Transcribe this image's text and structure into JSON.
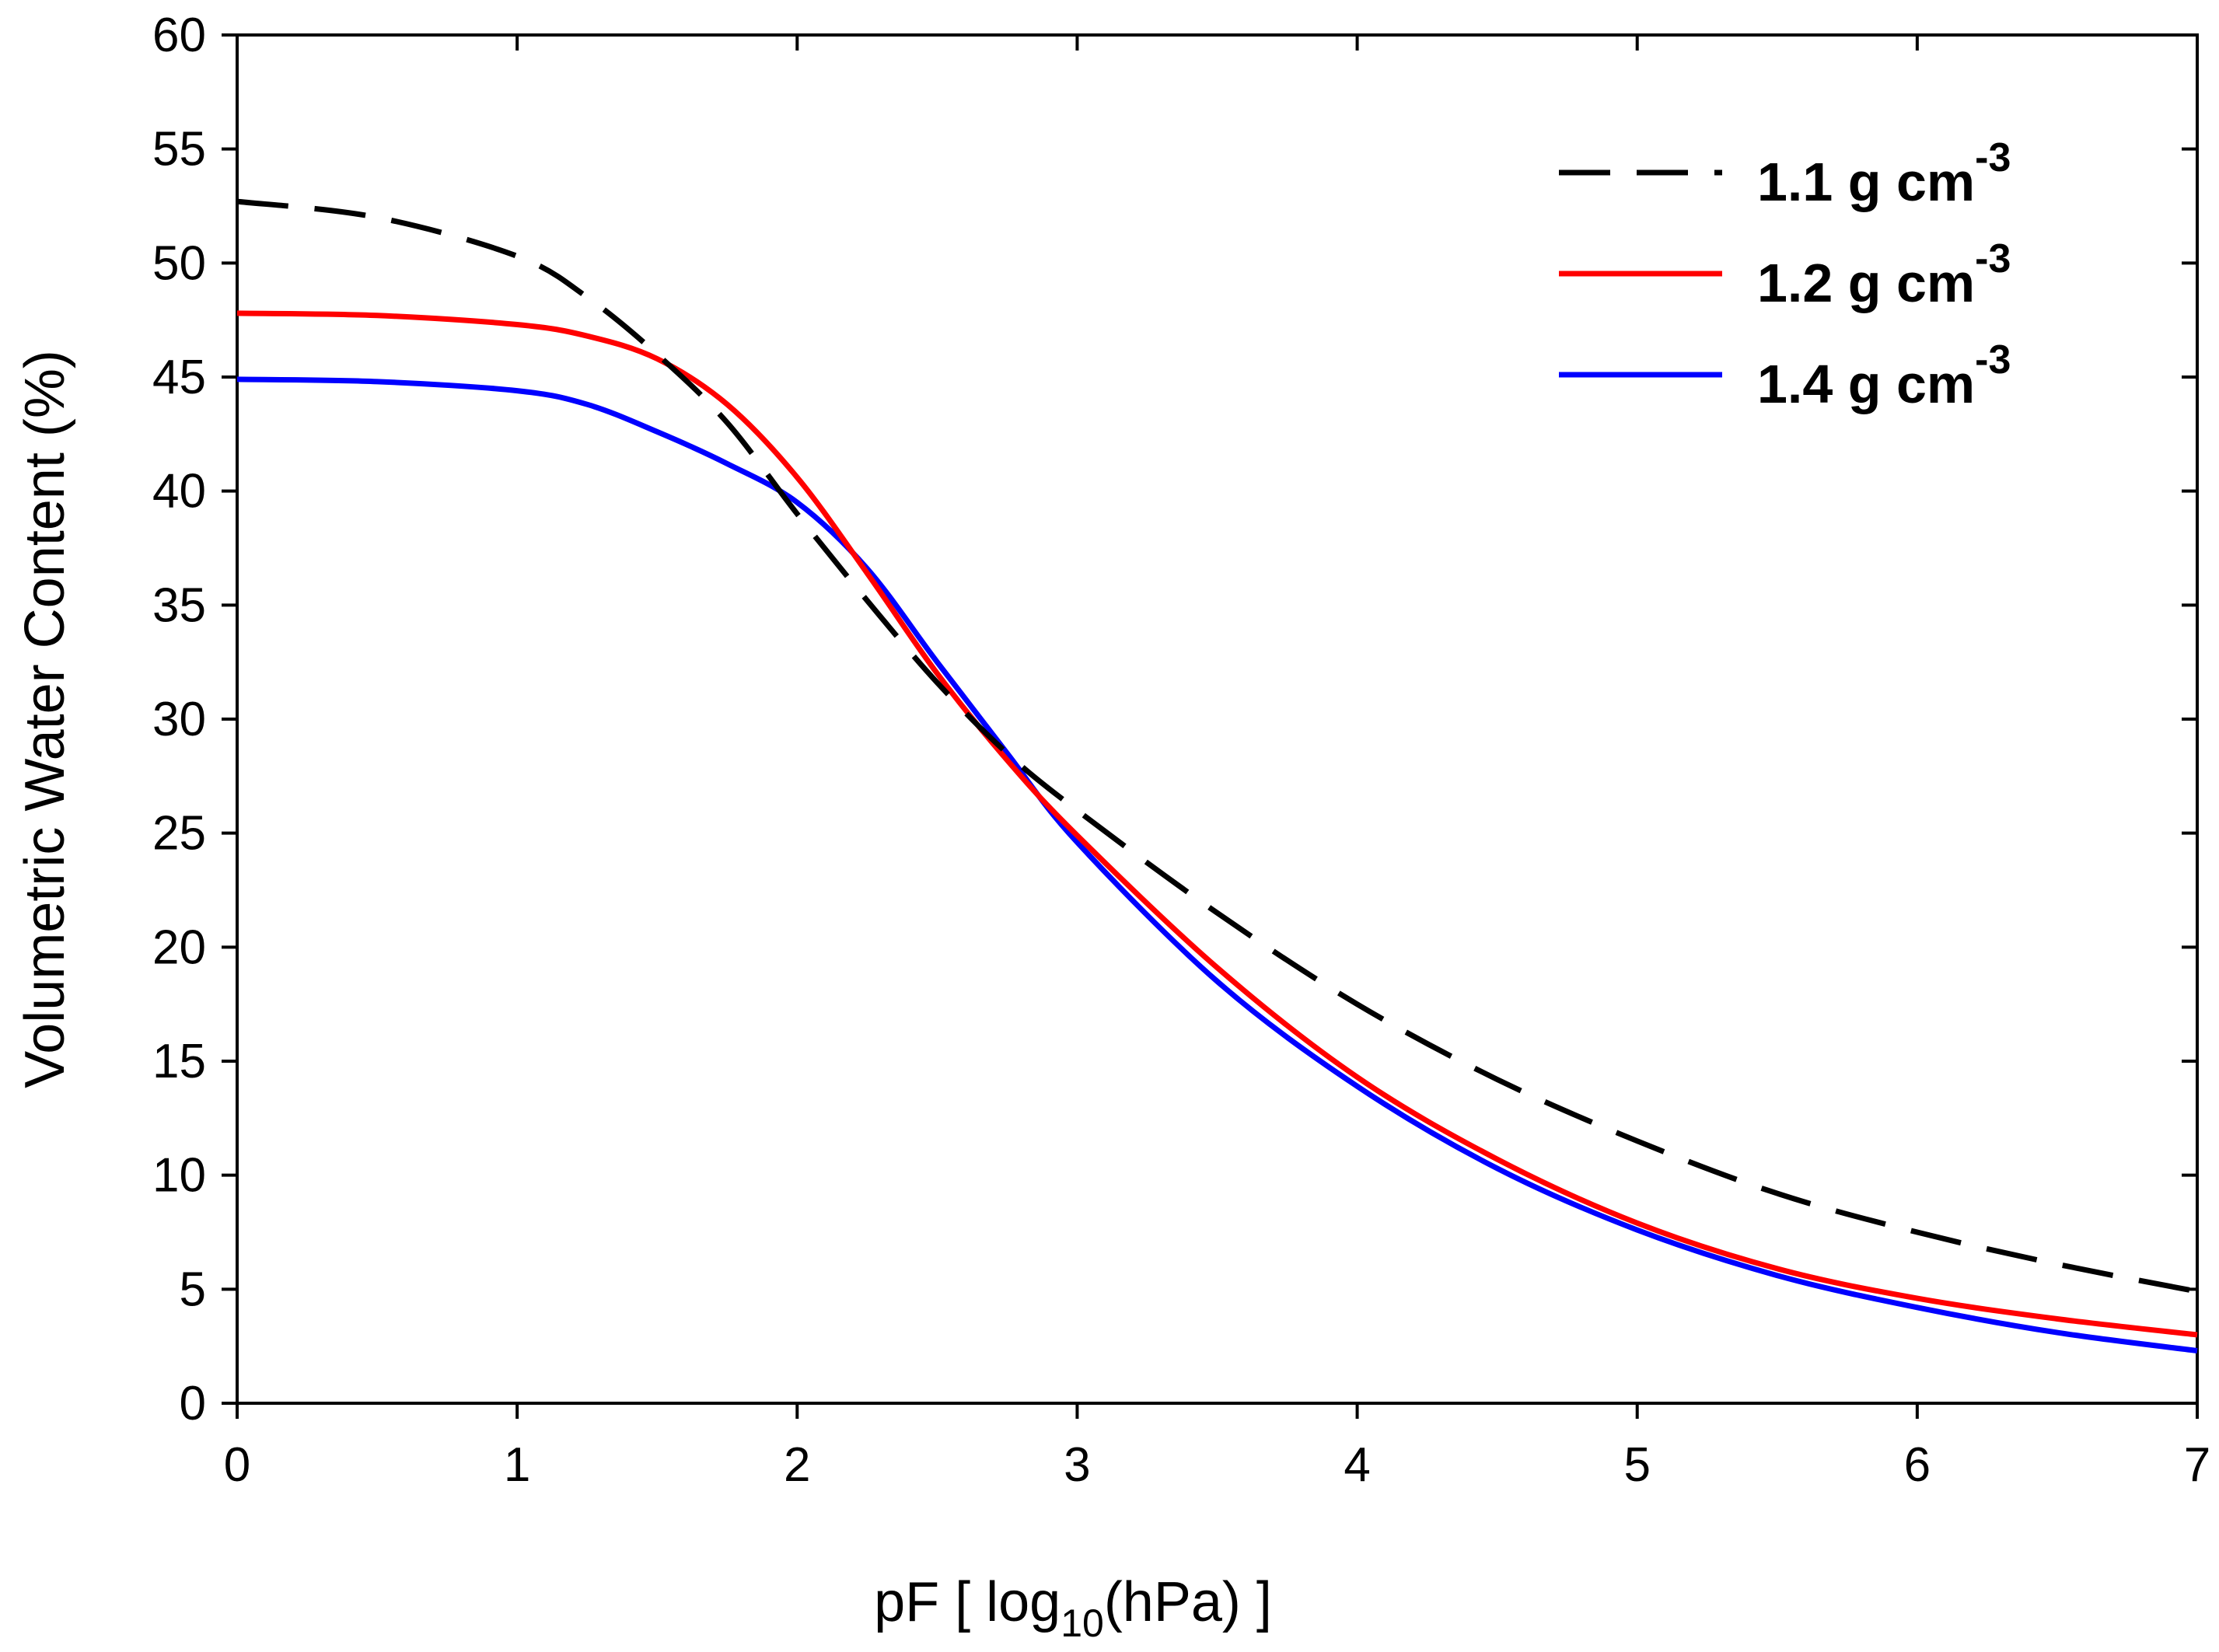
{
  "chart_data": {
    "type": "line",
    "title": "",
    "xlabel": {
      "prefix": "pF [ log",
      "sub": "10",
      "suffix": "(hPa) ]"
    },
    "ylabel": "Volumetric Water Content (%)",
    "xlim": [
      0,
      7
    ],
    "ylim": [
      0,
      60
    ],
    "x_ticks": [
      "0",
      "1",
      "2",
      "3",
      "4",
      "5",
      "6",
      "7"
    ],
    "y_ticks": [
      "0",
      "5",
      "10",
      "15",
      "20",
      "25",
      "30",
      "35",
      "40",
      "45",
      "50",
      "55",
      "60"
    ],
    "grid": false,
    "legend_position": "top-right",
    "x": [
      0,
      0.5,
      1,
      1.25,
      1.5,
      1.75,
      2,
      2.25,
      2.5,
      2.75,
      3,
      3.5,
      4,
      4.5,
      5,
      5.5,
      6,
      6.5,
      7
    ],
    "series": [
      {
        "name": "1.1 g cm",
        "superscript": "-3",
        "color": "#000000",
        "style": "dashed",
        "values": [
          52.7,
          52.0,
          50.3,
          48.5,
          46.0,
          43.0,
          39.0,
          35.2,
          31.6,
          28.5,
          26.0,
          21.5,
          17.5,
          14.2,
          11.5,
          9.2,
          7.5,
          6.1,
          4.9
        ]
      },
      {
        "name": "1.2 g cm",
        "superscript": "-3",
        "color": "#ff0000",
        "style": "solid",
        "values": [
          47.8,
          47.7,
          47.3,
          46.8,
          45.8,
          43.8,
          40.6,
          36.4,
          32.0,
          28.2,
          24.9,
          19.1,
          14.3,
          10.7,
          7.9,
          5.9,
          4.6,
          3.7,
          3.0
        ]
      },
      {
        "name": "1.4 g cm",
        "superscript": "-3",
        "color": "#0000ff",
        "style": "solid",
        "values": [
          44.9,
          44.8,
          44.4,
          43.8,
          42.6,
          41.2,
          39.5,
          36.6,
          32.5,
          28.5,
          24.6,
          18.5,
          13.9,
          10.3,
          7.6,
          5.6,
          4.2,
          3.1,
          2.3
        ]
      }
    ]
  }
}
